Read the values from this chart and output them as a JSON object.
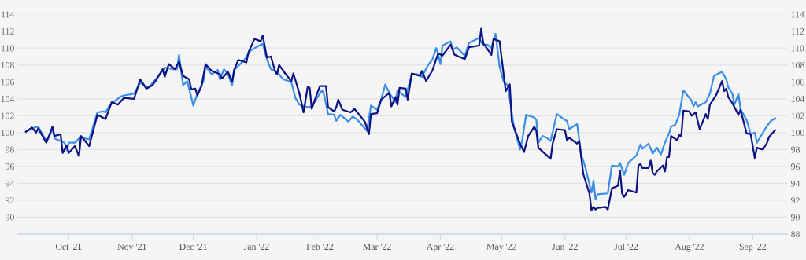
{
  "chart_data": {
    "type": "line",
    "grid": "y",
    "marker": "none",
    "line_style": "solid",
    "xlim": [
      "2021-09-06",
      "2022-09-18"
    ],
    "xticks": [
      {
        "value": "2021-10-01",
        "label": "Oct '21"
      },
      {
        "value": "2021-11-01",
        "label": "Nov '21"
      },
      {
        "value": "2021-12-01",
        "label": "Dec '21"
      },
      {
        "value": "2022-01-01",
        "label": "Jan '22"
      },
      {
        "value": "2022-02-01",
        "label": "Feb '22"
      },
      {
        "value": "2022-03-01",
        "label": "Mar '22"
      },
      {
        "value": "2022-04-01",
        "label": "Apr '22"
      },
      {
        "value": "2022-05-01",
        "label": "May '22"
      },
      {
        "value": "2022-06-01",
        "label": "Jun '22"
      },
      {
        "value": "2022-07-01",
        "label": "Jul '22"
      },
      {
        "value": "2022-08-01",
        "label": "Aug '22"
      },
      {
        "value": "2022-09-01",
        "label": "Sep '22"
      }
    ],
    "ylim": [
      88,
      114
    ],
    "yticks": [
      90,
      92,
      94,
      96,
      98,
      100,
      102,
      104,
      106,
      108,
      110,
      112,
      114
    ],
    "y2lim": [
      88,
      114
    ],
    "y2ticks": [
      88,
      90,
      92,
      94,
      96,
      98,
      100,
      102,
      104,
      106,
      108,
      110,
      112,
      114
    ],
    "series": [
      {
        "color": "#3a8ee6",
        "x": [
          "2021-09-10",
          "2021-09-13",
          "2021-09-16",
          "2021-09-20",
          "2021-09-22",
          "2021-09-23",
          "2021-09-24",
          "2021-09-27",
          "2021-09-29",
          "2021-09-30",
          "2021-10-01",
          "2021-10-04",
          "2021-10-06",
          "2021-10-07",
          "2021-10-11",
          "2021-10-15",
          "2021-10-18",
          "2021-10-19",
          "2021-10-21",
          "2021-10-23",
          "2021-10-26",
          "2021-10-28",
          "2021-11-02",
          "2021-11-05",
          "2021-11-09",
          "2021-11-14",
          "2021-11-17",
          "2021-11-21",
          "2021-11-23",
          "2021-11-24",
          "2021-11-26",
          "2021-11-28",
          "2021-12-01",
          "2021-12-03",
          "2021-12-06",
          "2021-12-07",
          "2021-12-10",
          "2021-12-13",
          "2021-12-14",
          "2021-12-16",
          "2021-12-18",
          "2021-12-20",
          "2021-12-21",
          "2021-12-26",
          "2021-12-29",
          "2021-12-31",
          "2022-01-04",
          "2022-01-06",
          "2022-01-08",
          "2022-01-11",
          "2022-01-14",
          "2022-01-18",
          "2022-01-20",
          "2022-01-22",
          "2022-01-26",
          "2022-01-28",
          "2022-02-02",
          "2022-02-03",
          "2022-02-05",
          "2022-02-08",
          "2022-02-09",
          "2022-02-11",
          "2022-02-15",
          "2022-02-17",
          "2022-02-19",
          "2022-02-23",
          "2022-02-24",
          "2022-02-26",
          "2022-03-01",
          "2022-03-03",
          "2022-03-05",
          "2022-03-07",
          "2022-03-10",
          "2022-03-11",
          "2022-03-15",
          "2022-03-18",
          "2022-03-21",
          "2022-03-23",
          "2022-03-26",
          "2022-03-28",
          "2022-03-30",
          "2022-03-31",
          "2022-04-01",
          "2022-04-02",
          "2022-04-06",
          "2022-04-07",
          "2022-04-09",
          "2022-04-13",
          "2022-04-15",
          "2022-04-20",
          "2022-04-22",
          "2022-04-24",
          "2022-04-26",
          "2022-04-28",
          "2022-04-30",
          "2022-05-02",
          "2022-05-04",
          "2022-05-07",
          "2022-05-10",
          "2022-05-11",
          "2022-05-13",
          "2022-05-17",
          "2022-05-18",
          "2022-05-19",
          "2022-05-21",
          "2022-05-23",
          "2022-05-25",
          "2022-05-28",
          "2022-06-01",
          "2022-06-02",
          "2022-06-03",
          "2022-06-07",
          "2022-06-09",
          "2022-06-11",
          "2022-06-14",
          "2022-06-15",
          "2022-06-16",
          "2022-06-17",
          "2022-06-22",
          "2022-06-24",
          "2022-06-27",
          "2022-06-28",
          "2022-06-30",
          "2022-07-02",
          "2022-07-06",
          "2022-07-08",
          "2022-07-09",
          "2022-07-12",
          "2022-07-14",
          "2022-07-16",
          "2022-07-18",
          "2022-07-20",
          "2022-07-22",
          "2022-07-23",
          "2022-07-25",
          "2022-07-27",
          "2022-07-29",
          "2022-08-02",
          "2022-08-03",
          "2022-08-04",
          "2022-08-05",
          "2022-08-09",
          "2022-08-11",
          "2022-08-13",
          "2022-08-17",
          "2022-08-19",
          "2022-08-20",
          "2022-08-22",
          "2022-08-23",
          "2022-08-25",
          "2022-08-26",
          "2022-08-29",
          "2022-08-31",
          "2022-09-02",
          "2022-09-03",
          "2022-09-08",
          "2022-09-10",
          "2022-09-12"
        ],
        "values": [
          100.1,
          100.5,
          100.7,
          99.0,
          99.8,
          100.5,
          99.3,
          99.0,
          98.8,
          97.9,
          98.8,
          98.8,
          99.3,
          99.4,
          99.2,
          102.4,
          102.5,
          102.4,
          103.2,
          103.6,
          104.2,
          104.4,
          104.6,
          105.9,
          105.3,
          106.7,
          107.7,
          107.5,
          107.5,
          109.2,
          105.6,
          106.1,
          103.2,
          104.6,
          106.1,
          107.8,
          106.9,
          107.4,
          106.3,
          107.5,
          106.9,
          105.6,
          107.4,
          108.6,
          109.7,
          110.0,
          110.5,
          108.7,
          107.5,
          107.2,
          106.3,
          106.0,
          104.1,
          103.3,
          103.0,
          103.1,
          105.0,
          104.5,
          102.2,
          102.1,
          101.4,
          102.1,
          101.3,
          101.9,
          101.6,
          100.5,
          100.2,
          103.2,
          102.7,
          103.9,
          105.7,
          104.7,
          103.6,
          105.0,
          104.2,
          106.9,
          106.9,
          106.6,
          108.0,
          108.6,
          110.0,
          109.2,
          108.1,
          110.3,
          110.8,
          109.8,
          110.1,
          109.1,
          110.6,
          111.2,
          110.3,
          110.4,
          110.0,
          111.7,
          107.8,
          106.0,
          105.6,
          100.7,
          98.0,
          99.0,
          102.1,
          101.8,
          101.5,
          98.8,
          99.6,
          99.4,
          99.0,
          102.2,
          101.5,
          101.4,
          100.4,
          101.0,
          97.4,
          95.9,
          92.9,
          94.3,
          92.1,
          92.7,
          92.8,
          96.1,
          96.0,
          96.4,
          95.0,
          96.4,
          97.3,
          98.6,
          98.1,
          98.7,
          97.5,
          98.2,
          97.4,
          98.8,
          99.9,
          100.7,
          100.9,
          102.1,
          105.0,
          103.8,
          103.1,
          103.6,
          103.1,
          103.6,
          104.6,
          106.7,
          107.2,
          106.3,
          105.4,
          104.6,
          103.3,
          104.6,
          102.8,
          101.5,
          99.8,
          100.0,
          98.8,
          100.8,
          101.4,
          101.7
        ]
      },
      {
        "color": "#0d1282",
        "x": [
          "2021-09-10",
          "2021-09-13",
          "2021-09-15",
          "2021-09-16",
          "2021-09-20",
          "2021-09-23",
          "2021-09-24",
          "2021-09-27",
          "2021-09-28",
          "2021-09-30",
          "2021-10-01",
          "2021-10-04",
          "2021-10-06",
          "2021-10-07",
          "2021-10-11",
          "2021-10-15",
          "2021-10-19",
          "2021-10-22",
          "2021-10-25",
          "2021-10-28",
          "2021-11-02",
          "2021-11-05",
          "2021-11-08",
          "2021-11-11",
          "2021-11-13",
          "2021-11-16",
          "2021-11-17",
          "2021-11-19",
          "2021-11-22",
          "2021-11-24",
          "2021-11-26",
          "2021-11-29",
          "2021-11-30",
          "2021-12-02",
          "2021-12-03",
          "2021-12-05",
          "2021-12-07",
          "2021-12-10",
          "2021-12-14",
          "2021-12-15",
          "2021-12-18",
          "2021-12-20",
          "2021-12-21",
          "2021-12-23",
          "2021-12-27",
          "2021-12-28",
          "2021-12-31",
          "2022-01-03",
          "2022-01-04",
          "2022-01-06",
          "2022-01-08",
          "2022-01-10",
          "2022-01-11",
          "2022-01-12",
          "2022-01-15",
          "2022-01-18",
          "2022-01-19",
          "2022-01-22",
          "2022-01-24",
          "2022-01-26",
          "2022-01-27",
          "2022-01-28",
          "2022-01-30",
          "2022-02-01",
          "2022-02-04",
          "2022-02-05",
          "2022-02-08",
          "2022-02-09",
          "2022-02-10",
          "2022-02-12",
          "2022-02-16",
          "2022-02-18",
          "2022-02-23",
          "2022-02-25",
          "2022-02-26",
          "2022-03-01",
          "2022-03-03",
          "2022-03-07",
          "2022-03-08",
          "2022-03-10",
          "2022-03-11",
          "2022-03-12",
          "2022-03-15",
          "2022-03-16",
          "2022-03-18",
          "2022-03-22",
          "2022-03-23",
          "2022-03-25",
          "2022-03-28",
          "2022-03-31",
          "2022-04-02",
          "2022-04-06",
          "2022-04-08",
          "2022-04-13",
          "2022-04-15",
          "2022-04-20",
          "2022-04-21",
          "2022-04-22",
          "2022-04-26",
          "2022-04-27",
          "2022-04-30",
          "2022-05-03",
          "2022-05-05",
          "2022-05-06",
          "2022-05-10",
          "2022-05-12",
          "2022-05-14",
          "2022-05-17",
          "2022-05-18",
          "2022-05-19",
          "2022-05-25",
          "2022-05-26",
          "2022-05-28",
          "2022-06-01",
          "2022-06-02",
          "2022-06-03",
          "2022-06-07",
          "2022-06-08",
          "2022-06-10",
          "2022-06-13",
          "2022-06-14",
          "2022-06-15",
          "2022-06-16",
          "2022-06-17",
          "2022-06-21",
          "2022-06-22",
          "2022-06-24",
          "2022-06-27",
          "2022-06-28",
          "2022-06-29",
          "2022-06-30",
          "2022-07-02",
          "2022-07-06",
          "2022-07-07",
          "2022-07-08",
          "2022-07-09",
          "2022-07-12",
          "2022-07-13",
          "2022-07-14",
          "2022-07-15",
          "2022-07-16",
          "2022-07-19",
          "2022-07-20",
          "2022-07-21",
          "2022-07-22",
          "2022-07-23",
          "2022-07-26",
          "2022-07-27",
          "2022-07-28",
          "2022-07-29",
          "2022-08-01",
          "2022-08-02",
          "2022-08-04",
          "2022-08-06",
          "2022-08-09",
          "2022-08-10",
          "2022-08-11",
          "2022-08-14",
          "2022-08-17",
          "2022-08-18",
          "2022-08-19",
          "2022-08-20",
          "2022-08-22",
          "2022-08-25",
          "2022-08-26",
          "2022-08-29",
          "2022-08-31",
          "2022-09-02",
          "2022-09-03",
          "2022-09-06",
          "2022-09-08",
          "2022-09-09",
          "2022-09-12"
        ],
        "values": [
          100.1,
          100.6,
          100.0,
          100.5,
          98.8,
          100.7,
          99.6,
          99.8,
          97.6,
          98.5,
          97.6,
          98.4,
          97.2,
          99.6,
          98.4,
          102.1,
          101.6,
          103.6,
          103.3,
          104.1,
          104.0,
          106.3,
          105.2,
          105.6,
          106.3,
          107.5,
          106.6,
          108.1,
          107.5,
          108.4,
          106.7,
          106.3,
          105.1,
          105.2,
          104.4,
          105.5,
          108.1,
          107.3,
          106.9,
          106.4,
          107.2,
          106.0,
          107.4,
          108.6,
          108.3,
          109.5,
          111.1,
          110.8,
          111.5,
          108.9,
          109.0,
          107.3,
          106.9,
          108.0,
          107.0,
          106.1,
          107.0,
          104.6,
          102.4,
          105.4,
          105.3,
          102.8,
          104.2,
          105.5,
          105.5,
          103.0,
          102.5,
          103.0,
          103.9,
          102.7,
          102.4,
          102.8,
          101.3,
          99.8,
          102.2,
          102.3,
          103.9,
          104.7,
          103.1,
          104.2,
          103.3,
          105.3,
          105.2,
          103.9,
          107.0,
          106.7,
          107.3,
          106.1,
          107.3,
          109.4,
          109.1,
          110.4,
          109.2,
          108.7,
          110.1,
          110.3,
          112.3,
          110.6,
          109.2,
          111.1,
          110.8,
          104.9,
          105.7,
          101.3,
          98.7,
          97.7,
          99.6,
          100.7,
          100.2,
          98.2,
          96.9,
          98.7,
          100.4,
          100.3,
          99.1,
          99.4,
          98.7,
          99.0,
          95.1,
          92.8,
          90.8,
          91.2,
          90.9,
          91.1,
          91.2,
          90.9,
          93.4,
          93.7,
          95.5,
          92.8,
          92.4,
          93.2,
          92.9,
          96.1,
          96.3,
          95.8,
          95.8,
          96.7,
          95.2,
          95.0,
          95.4,
          96.1,
          95.4,
          97.1,
          97.1,
          99.6,
          99.1,
          99.7,
          99.6,
          102.6,
          102.5,
          102.0,
          102.4,
          100.4,
          102.2,
          101.6,
          103.3,
          104.4,
          106.1,
          104.9,
          105.2,
          104.2,
          103.5,
          102.1,
          102.7,
          99.9,
          99.8,
          97.0,
          98.2,
          98.0,
          98.8,
          99.5,
          100.3
        ]
      }
    ]
  }
}
